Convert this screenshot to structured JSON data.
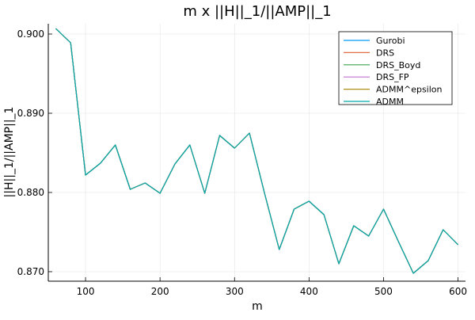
{
  "chart_data": {
    "type": "line",
    "title": "m x ||H||_1/||AMP||_1",
    "xlabel": "m",
    "ylabel": "||H||_1/||AMP||_1",
    "xlim": [
      50,
      610
    ],
    "ylim": [
      0.8688,
      0.9013
    ],
    "xticks": [
      100,
      200,
      300,
      400,
      500,
      600
    ],
    "yticks": [
      0.87,
      0.88,
      0.89,
      0.9
    ],
    "ytick_labels": [
      "0.870",
      "0.880",
      "0.890",
      "0.900"
    ],
    "grid": true,
    "legend_position": "top-right",
    "x": [
      60,
      80,
      100,
      120,
      140,
      160,
      180,
      200,
      220,
      240,
      260,
      280,
      300,
      320,
      340,
      360,
      380,
      400,
      420,
      440,
      460,
      480,
      500,
      520,
      540,
      560,
      580,
      600
    ],
    "series": [
      {
        "name": "Gurobi",
        "color": "#009AFA",
        "values": [
          0.9007,
          0.8989,
          0.8822,
          0.8837,
          0.886,
          0.8804,
          0.8812,
          0.8799,
          0.8836,
          0.886,
          0.8799,
          0.8872,
          0.8856,
          0.8875,
          0.88,
          0.8728,
          0.8779,
          0.8789,
          0.8772,
          0.871,
          0.8758,
          0.8745,
          0.8779,
          0.8738,
          0.8698,
          0.8714,
          0.8753,
          0.8734
        ]
      },
      {
        "name": "DRS",
        "color": "#E36F47",
        "values": [
          0.9007,
          0.8989,
          0.8822,
          0.8837,
          0.886,
          0.8804,
          0.8812,
          0.8799,
          0.8836,
          0.886,
          0.8799,
          0.8872,
          0.8856,
          0.8875,
          0.88,
          0.8728,
          0.8779,
          0.8789,
          0.8772,
          0.871,
          0.8758,
          0.8745,
          0.8779,
          0.8738,
          0.8698,
          0.8714,
          0.8753,
          0.8734
        ]
      },
      {
        "name": "DRS_Boyd",
        "color": "#3EA44E",
        "values": [
          0.9007,
          0.8989,
          0.8822,
          0.8837,
          0.886,
          0.8804,
          0.8812,
          0.8799,
          0.8836,
          0.886,
          0.8799,
          0.8872,
          0.8856,
          0.8875,
          0.88,
          0.8728,
          0.8779,
          0.8789,
          0.8772,
          0.871,
          0.8758,
          0.8745,
          0.8779,
          0.8738,
          0.8698,
          0.8714,
          0.8753,
          0.8734
        ]
      },
      {
        "name": "DRS_FP",
        "color": "#C371D2",
        "values": [
          0.9007,
          0.8989,
          0.8822,
          0.8837,
          0.886,
          0.8804,
          0.8812,
          0.8799,
          0.8836,
          0.886,
          0.8799,
          0.8872,
          0.8856,
          0.8875,
          0.88,
          0.8728,
          0.8779,
          0.8789,
          0.8772,
          0.871,
          0.8758,
          0.8745,
          0.8779,
          0.8738,
          0.8698,
          0.8714,
          0.8753,
          0.8734
        ]
      },
      {
        "name": "ADMM^epsilon",
        "color": "#AC8E18",
        "values": [
          0.9007,
          0.8989,
          0.8822,
          0.8837,
          0.886,
          0.8804,
          0.8812,
          0.8799,
          0.8836,
          0.886,
          0.8799,
          0.8872,
          0.8856,
          0.8875,
          0.88,
          0.8728,
          0.8779,
          0.8789,
          0.8772,
          0.871,
          0.8758,
          0.8745,
          0.8779,
          0.8738,
          0.8698,
          0.8714,
          0.8753,
          0.8734
        ]
      },
      {
        "name": "ADMM",
        "color": "#00A9AD",
        "values": [
          0.9007,
          0.8989,
          0.8822,
          0.8837,
          0.886,
          0.8804,
          0.8812,
          0.8799,
          0.8836,
          0.886,
          0.8799,
          0.8872,
          0.8856,
          0.8875,
          0.88,
          0.8728,
          0.8779,
          0.8789,
          0.8772,
          0.871,
          0.8758,
          0.8745,
          0.8779,
          0.8738,
          0.8698,
          0.8714,
          0.8753,
          0.8734
        ]
      }
    ]
  }
}
